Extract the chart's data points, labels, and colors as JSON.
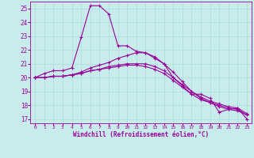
{
  "xlabel": "Windchill (Refroidissement éolien,°C)",
  "bg_color": "#c8ecec",
  "line_color": "#990099",
  "grid_color": "#aadddd",
  "ylim": [
    16.7,
    25.5
  ],
  "xlim": [
    -0.5,
    23.5
  ],
  "yticks": [
    17,
    18,
    19,
    20,
    21,
    22,
    23,
    24,
    25
  ],
  "xticks": [
    0,
    1,
    2,
    3,
    4,
    5,
    6,
    7,
    8,
    9,
    10,
    11,
    12,
    13,
    14,
    15,
    16,
    17,
    18,
    19,
    20,
    21,
    22,
    23
  ],
  "series": [
    [
      20.0,
      20.3,
      20.5,
      20.5,
      20.7,
      22.9,
      25.2,
      25.2,
      24.6,
      22.3,
      22.3,
      21.9,
      21.8,
      21.4,
      21.0,
      20.0,
      19.4,
      18.8,
      18.8,
      18.5,
      17.5,
      17.7,
      17.8,
      17.0
    ],
    [
      20.0,
      20.0,
      20.1,
      20.1,
      20.2,
      20.4,
      20.7,
      20.9,
      21.1,
      21.4,
      21.6,
      21.8,
      21.8,
      21.5,
      21.0,
      20.4,
      19.7,
      19.0,
      18.5,
      18.2,
      17.9,
      17.7,
      17.6,
      17.3
    ],
    [
      20.0,
      20.0,
      20.1,
      20.1,
      20.2,
      20.3,
      20.5,
      20.6,
      20.8,
      20.9,
      21.0,
      21.0,
      21.0,
      20.8,
      20.5,
      20.0,
      19.5,
      19.0,
      18.6,
      18.3,
      18.1,
      17.9,
      17.8,
      17.4
    ],
    [
      20.0,
      20.0,
      20.1,
      20.1,
      20.2,
      20.3,
      20.5,
      20.6,
      20.7,
      20.8,
      20.9,
      20.9,
      20.8,
      20.6,
      20.3,
      19.8,
      19.3,
      18.8,
      18.4,
      18.2,
      18.0,
      17.8,
      17.7,
      17.3
    ]
  ]
}
